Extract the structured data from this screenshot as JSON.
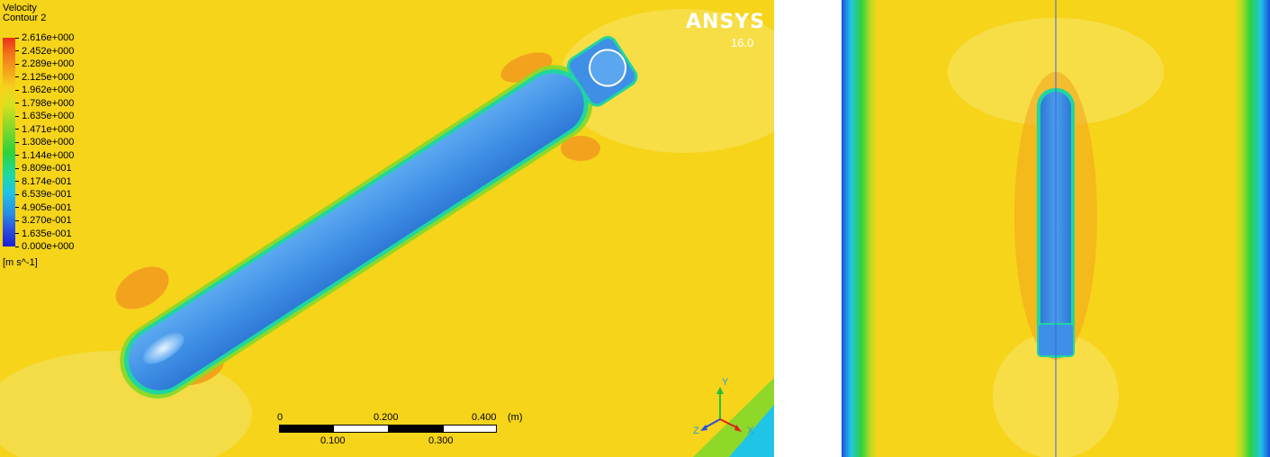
{
  "legend": {
    "title_line1": "Velocity",
    "title_line2": "Contour 2",
    "unit": "[m s^-1]",
    "ticks": [
      "2.616e+000",
      "2.452e+000",
      "2.289e+000",
      "2.125e+000",
      "1.962e+000",
      "1.798e+000",
      "1.635e+000",
      "1.471e+000",
      "1.308e+000",
      "1.144e+000",
      "9.809e-001",
      "8.174e-001",
      "6.539e-001",
      "4.905e-001",
      "3.270e-001",
      "1.635e-001",
      "0.000e+000"
    ]
  },
  "branding": {
    "logo": "ANSYS",
    "version": "16.0"
  },
  "scale_bar": {
    "top_labels": [
      "0",
      "0.200",
      "0.400"
    ],
    "unit": "(m)",
    "bottom_labels": [
      "0.100",
      "0.300"
    ]
  },
  "axes_triad": {
    "y_label": "Y",
    "x_label": "X",
    "z_label": "Z"
  },
  "colors": {
    "background_field": "#f6d41a",
    "body": "#3f8fe6",
    "boundary": "#1fd6a0",
    "wake": "#f2a21c"
  }
}
